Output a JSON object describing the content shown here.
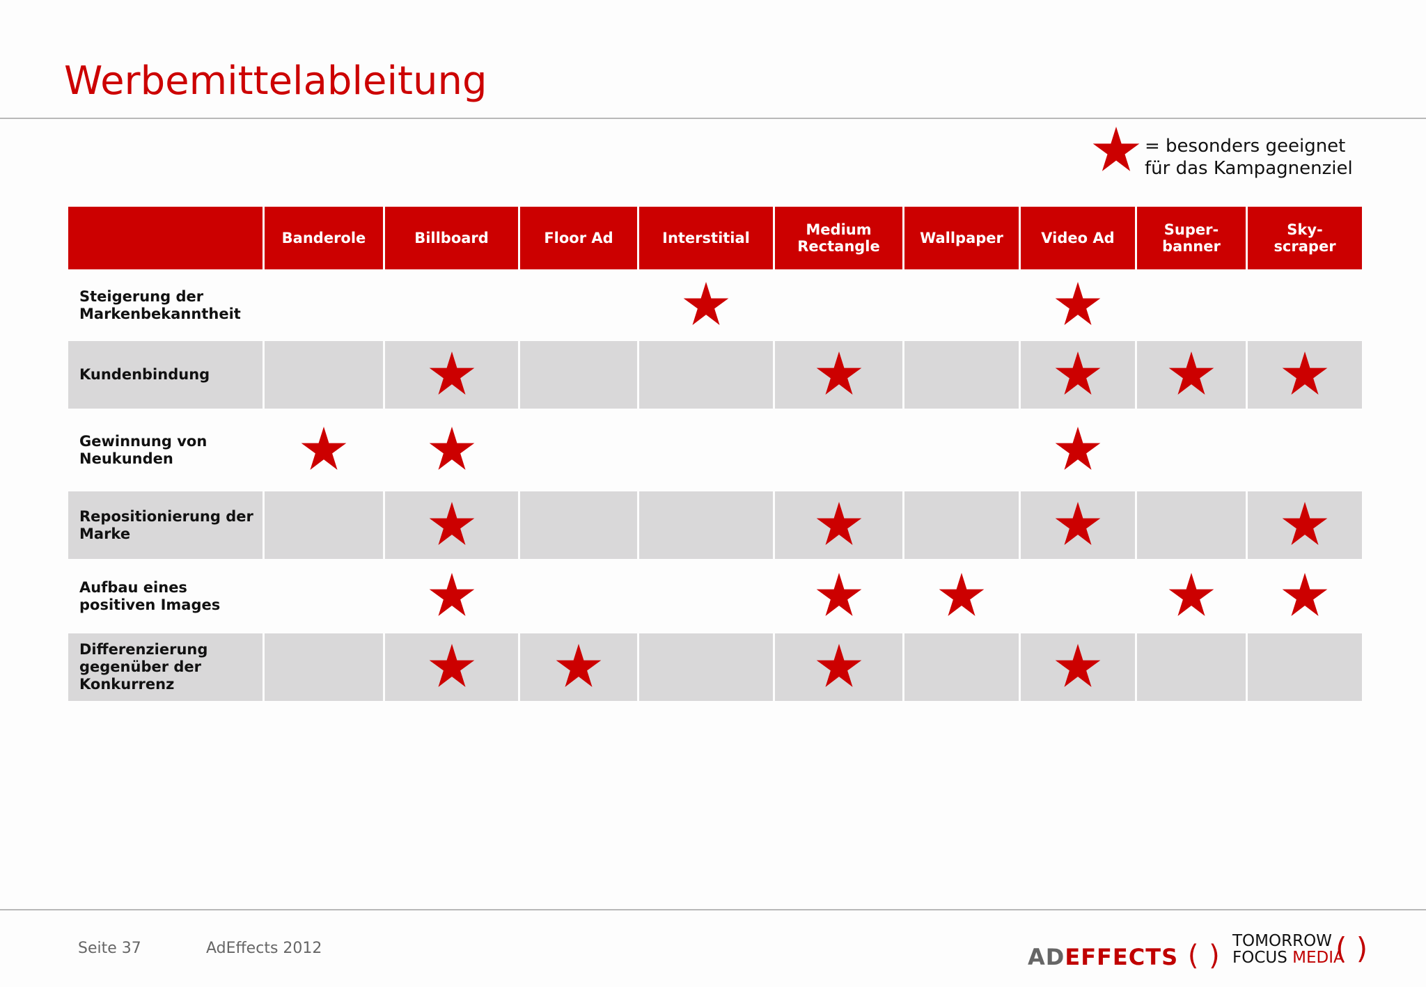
{
  "title": "Werbemittelableitung",
  "legend": {
    "icon": "star-icon",
    "line1": "= besonders geeignet",
    "line2": "für das Kampagnenziel"
  },
  "colors": {
    "accent": "#cc0000",
    "gray_row": "#d9d8d9"
  },
  "columns": [
    "Banderole",
    "Billboard",
    "Floor Ad",
    "Interstitial",
    "Medium Rectangle",
    "Wallpaper",
    "Video Ad",
    "Super-banner",
    "Sky-scraper"
  ],
  "rows": [
    {
      "label": "Steigerung der Markenbekanntheit",
      "stars": [
        0,
        0,
        0,
        1,
        0,
        0,
        1,
        0,
        0
      ]
    },
    {
      "label": "Kundenbindung",
      "stars": [
        0,
        1,
        0,
        0,
        1,
        0,
        1,
        1,
        1
      ]
    },
    {
      "label": "Gewinnung von Neukunden",
      "stars": [
        1,
        1,
        0,
        0,
        0,
        0,
        1,
        0,
        0
      ]
    },
    {
      "label": "Repositionierung der Marke",
      "stars": [
        0,
        1,
        0,
        0,
        1,
        0,
        1,
        0,
        1
      ]
    },
    {
      "label": "Aufbau eines positiven Images",
      "stars": [
        0,
        1,
        0,
        0,
        1,
        1,
        0,
        1,
        1
      ]
    },
    {
      "label": "Differenzierung gegenüber der Konkurrenz",
      "stars": [
        0,
        1,
        1,
        0,
        1,
        0,
        1,
        0,
        0
      ]
    }
  ],
  "footer": {
    "page": "Seite 37",
    "source": "AdEffects 2012",
    "logo1_a": "AD",
    "logo1_b": "EFFECTS",
    "logo2_a": "TOMORROW",
    "logo2_b": "FOCUS",
    "logo2_c": "MEDIA"
  }
}
